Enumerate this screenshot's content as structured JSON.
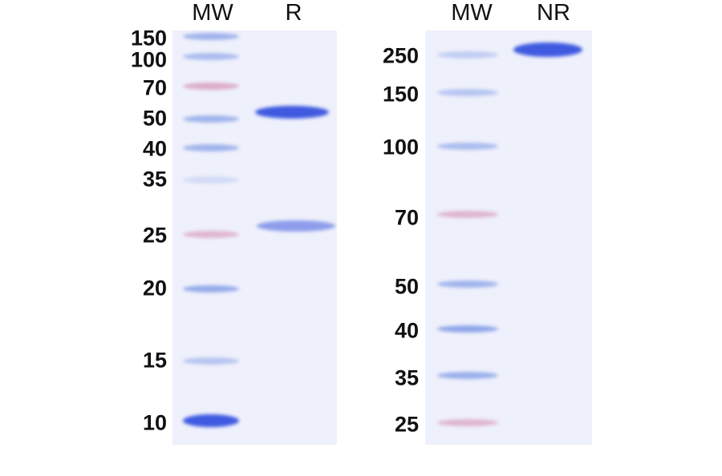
{
  "left_gel": {
    "lane_headers": [
      "MW",
      "R"
    ],
    "marker_labels": [
      "150",
      "100",
      "70",
      "50",
      "40",
      "35",
      "25",
      "20",
      "15",
      "10"
    ]
  },
  "right_gel": {
    "lane_headers": [
      "MW",
      "NR"
    ],
    "marker_labels": [
      "250",
      "150",
      "100",
      "70",
      "50",
      "40",
      "35",
      "25"
    ]
  },
  "colors": {
    "gel_background": "#eef0fb",
    "marker_band": "#7f9ae6",
    "marker_band_pink": "#d690b2",
    "sample_band": "#3f5ae0"
  }
}
